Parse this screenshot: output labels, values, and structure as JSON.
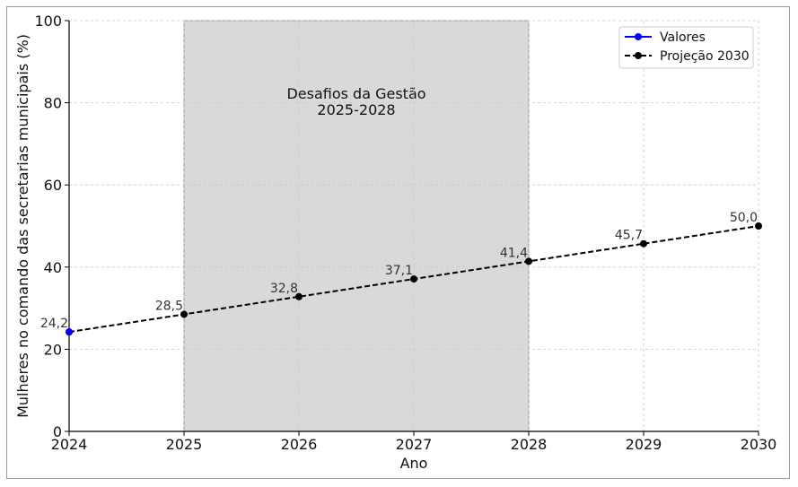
{
  "chart_data": {
    "type": "line",
    "title": "",
    "xlabel": "Ano",
    "ylabel": "Mulheres no comando das secretarias municipais (%)",
    "xlim": [
      2024,
      2030
    ],
    "ylim": [
      0,
      100
    ],
    "x_ticks": [
      "2024",
      "2025",
      "2026",
      "2027",
      "2028",
      "2029",
      "2030"
    ],
    "y_ticks": [
      "0",
      "20",
      "40",
      "60",
      "80",
      "100"
    ],
    "grid": true,
    "legend_position": "top-right",
    "series": [
      {
        "name": "Valores",
        "color": "#0000ff",
        "style": "solid",
        "marker": "circle",
        "x": [
          2024
        ],
        "values": [
          24.2
        ]
      },
      {
        "name": "Projeção 2030",
        "color": "#000000",
        "style": "dashed",
        "marker": "circle",
        "x": [
          2024,
          2025,
          2026,
          2027,
          2028,
          2029,
          2030
        ],
        "values": [
          24.2,
          28.5,
          32.8,
          37.1,
          41.4,
          45.7,
          50.0
        ]
      }
    ],
    "data_labels": [
      {
        "x": 2024,
        "y": 24.2,
        "text": "24,2"
      },
      {
        "x": 2025,
        "y": 28.5,
        "text": "28,5"
      },
      {
        "x": 2026,
        "y": 32.8,
        "text": "32,8"
      },
      {
        "x": 2027,
        "y": 37.1,
        "text": "37,1"
      },
      {
        "x": 2028,
        "y": 41.4,
        "text": "41,4"
      },
      {
        "x": 2029,
        "y": 45.7,
        "text": "45,7"
      },
      {
        "x": 2030,
        "y": 50.0,
        "text": "50,0"
      }
    ],
    "shaded_region": {
      "x_start": 2025,
      "x_end": 2028,
      "color": "#d9d9d9",
      "label_lines": [
        "Desafios da Gestão",
        "2025-2028"
      ]
    }
  }
}
